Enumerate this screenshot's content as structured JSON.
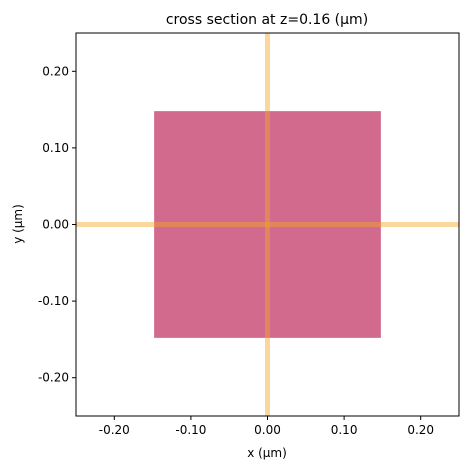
{
  "chart_data": {
    "type": "cross-section",
    "title": "cross section at z=0.16 (μm)",
    "xlabel": "x (μm)",
    "ylabel": "y (μm)",
    "xlim": [
      -0.25,
      0.25
    ],
    "ylim": [
      -0.25,
      0.25
    ],
    "xticks": [
      {
        "value": -0.2,
        "label": "-0.20"
      },
      {
        "value": -0.1,
        "label": "-0.10"
      },
      {
        "value": 0.0,
        "label": "0.00"
      },
      {
        "value": 0.1,
        "label": "0.10"
      },
      {
        "value": 0.2,
        "label": "0.20"
      }
    ],
    "yticks": [
      {
        "value": -0.2,
        "label": "-0.20"
      },
      {
        "value": -0.1,
        "label": "-0.10"
      },
      {
        "value": 0.0,
        "label": "0.00"
      },
      {
        "value": 0.1,
        "label": "0.10"
      },
      {
        "value": 0.2,
        "label": "0.20"
      }
    ],
    "grid": false,
    "structure": {
      "x_range": [
        -0.148,
        0.148
      ],
      "y_range": [
        -0.148,
        0.148
      ],
      "color": "#d16a8c"
    },
    "cross_lines": {
      "x": 0.0,
      "y": 0.0,
      "color": "#f5a623",
      "opacity": 0.45
    }
  }
}
